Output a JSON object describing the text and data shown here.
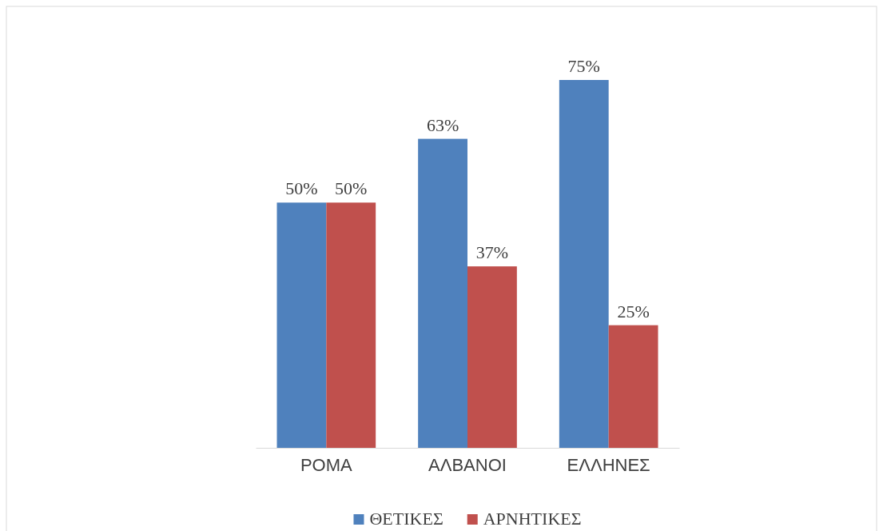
{
  "chart_data": {
    "type": "bar",
    "categories": [
      "ΡΟΜΑ",
      "ΑΛΒΑΝΟΙ",
      "ΕΛΛΗΝΕΣ"
    ],
    "series": [
      {
        "name": "ΘΕΤΙΚΕΣ",
        "color": "#4f81bd",
        "values": [
          50,
          63,
          75
        ],
        "value_labels": [
          "50%",
          "63%",
          "75%"
        ]
      },
      {
        "name": "ΑΡΝΗΤΙΚΕΣ",
        "color": "#c0504d",
        "values": [
          50,
          37,
          25
        ],
        "value_labels": [
          "50%",
          "37%",
          "25%"
        ]
      }
    ],
    "legend": "bottom",
    "tick_labels": "x"
  }
}
